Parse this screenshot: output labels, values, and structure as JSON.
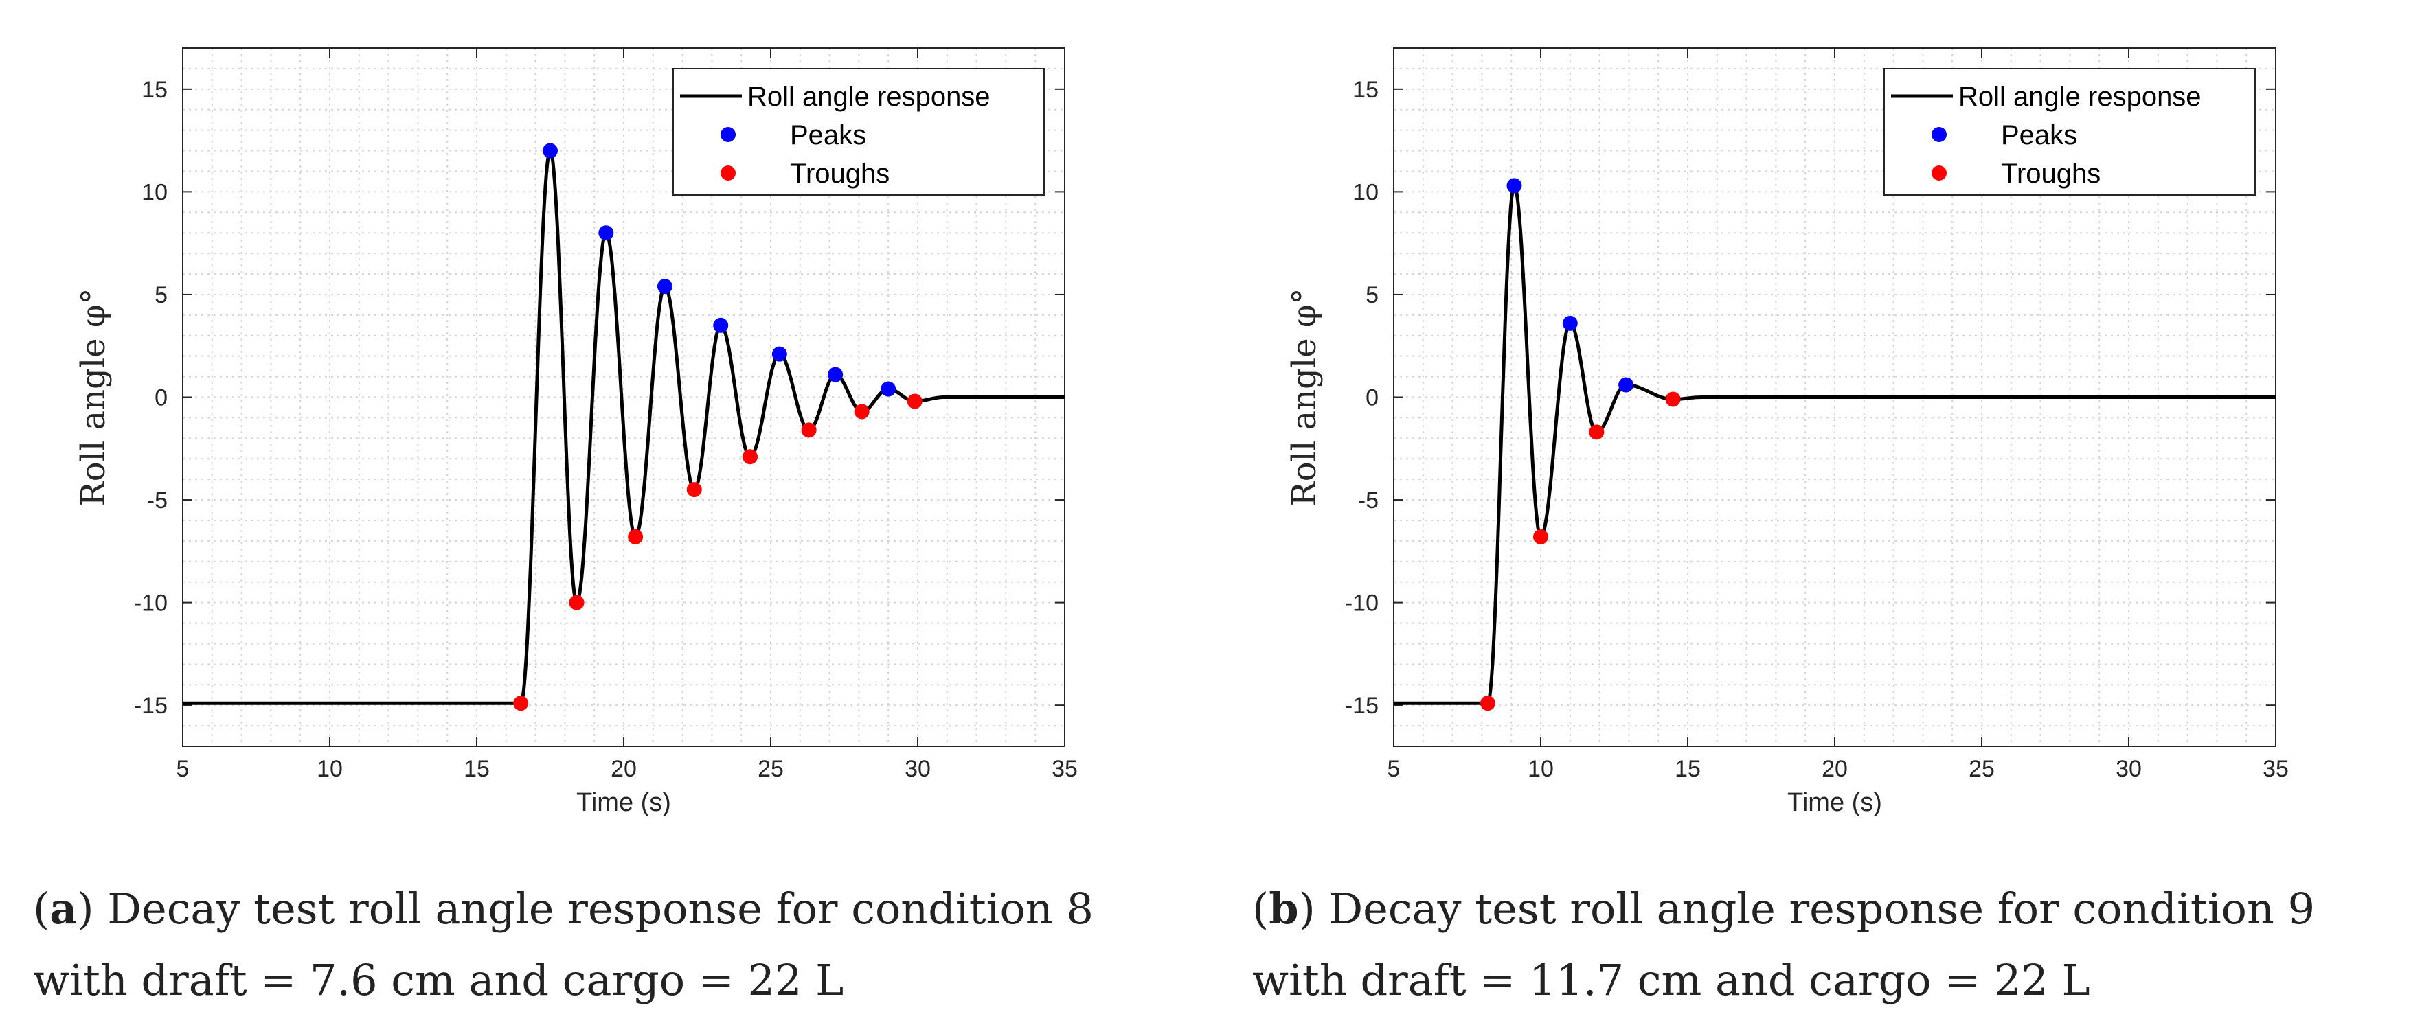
{
  "chart_data": [
    {
      "type": "line",
      "panel_letter": "a",
      "caption_text": "Decay test roll angle response for condition 8 with draft = 7.6 cm and cargo = 22 L",
      "xlabel": "Time (s)",
      "ylabel": "Roll angle φ°",
      "xlim": [
        5,
        35
      ],
      "ylim": [
        -17,
        17
      ],
      "xticks": [
        5,
        10,
        15,
        20,
        25,
        30,
        35
      ],
      "yticks": [
        -15,
        -10,
        -5,
        0,
        5,
        10,
        15
      ],
      "grid": true,
      "legend_position": "top-right",
      "legend": [
        "Roll angle response",
        "Peaks",
        "Troughs"
      ],
      "colors": {
        "response": "#000000",
        "peaks": "#0000ff",
        "troughs": "#ff0000"
      },
      "series": [
        {
          "name": "Peaks",
          "x": [
            17.5,
            19.4,
            21.4,
            23.3,
            25.3,
            27.2,
            29.0
          ],
          "y": [
            12.0,
            8.0,
            5.4,
            3.5,
            2.1,
            1.1,
            0.4
          ]
        },
        {
          "name": "Troughs",
          "x": [
            16.5,
            18.4,
            20.4,
            22.4,
            24.3,
            26.3,
            28.1,
            29.9
          ],
          "y": [
            -14.9,
            -10.0,
            -6.8,
            -4.5,
            -2.9,
            -1.6,
            -0.7,
            -0.2
          ]
        }
      ],
      "steady_start": -14.9,
      "steady_end": 0.0
    },
    {
      "type": "line",
      "panel_letter": "b",
      "caption_text": "Decay test roll angle response for condition 9 with draft = 11.7 cm and cargo = 22 L",
      "xlabel": "Time (s)",
      "ylabel": "Roll angle φ°",
      "xlim": [
        5,
        35
      ],
      "ylim": [
        -17,
        17
      ],
      "xticks": [
        5,
        10,
        15,
        20,
        25,
        30,
        35
      ],
      "yticks": [
        -15,
        -10,
        -5,
        0,
        5,
        10,
        15
      ],
      "grid": true,
      "legend_position": "top-right",
      "legend": [
        "Roll angle response",
        "Peaks",
        "Troughs"
      ],
      "colors": {
        "response": "#000000",
        "peaks": "#0000ff",
        "troughs": "#ff0000"
      },
      "series": [
        {
          "name": "Peaks",
          "x": [
            9.1,
            11.0,
            12.9
          ],
          "y": [
            10.3,
            3.6,
            0.6
          ]
        },
        {
          "name": "Troughs",
          "x": [
            8.2,
            10.0,
            11.9,
            14.5
          ],
          "y": [
            -14.9,
            -6.8,
            -1.7,
            -0.1
          ]
        }
      ],
      "steady_start": -14.9,
      "steady_end": 0.0
    }
  ]
}
